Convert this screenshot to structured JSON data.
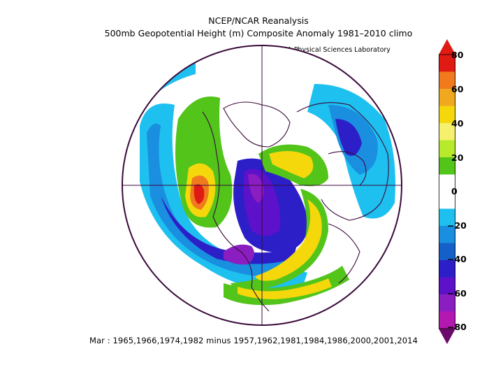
{
  "header": {
    "title": "NCEP/NCAR Reanalysis",
    "subtitle": "500mb Geopotential Height (m) Composite Anomaly 1981–2010 climo",
    "credit": "NOAA Physical Sciences Laboratory"
  },
  "footer": {
    "text": "Mar : 1965,1966,1974,1982 minus 1957,1962,1981,1984,1986,2000,2001,2014"
  },
  "colorbar": {
    "labels": [
      "80",
      "60",
      "40",
      "20",
      "0",
      "−20",
      "−40",
      "−60",
      "−80"
    ],
    "colors": [
      "#e01b14",
      "#f07a1e",
      "#f0a81e",
      "#f4d80c",
      "#f5f06e",
      "#b6ea2a",
      "#52c41a",
      "#ffffff",
      "#1ec0f0",
      "#1a8fe0",
      "#1460c8",
      "#2c1fc8",
      "#5d11c8",
      "#8a1ec0",
      "#b318b0",
      "#6a0a6a"
    ]
  }
}
